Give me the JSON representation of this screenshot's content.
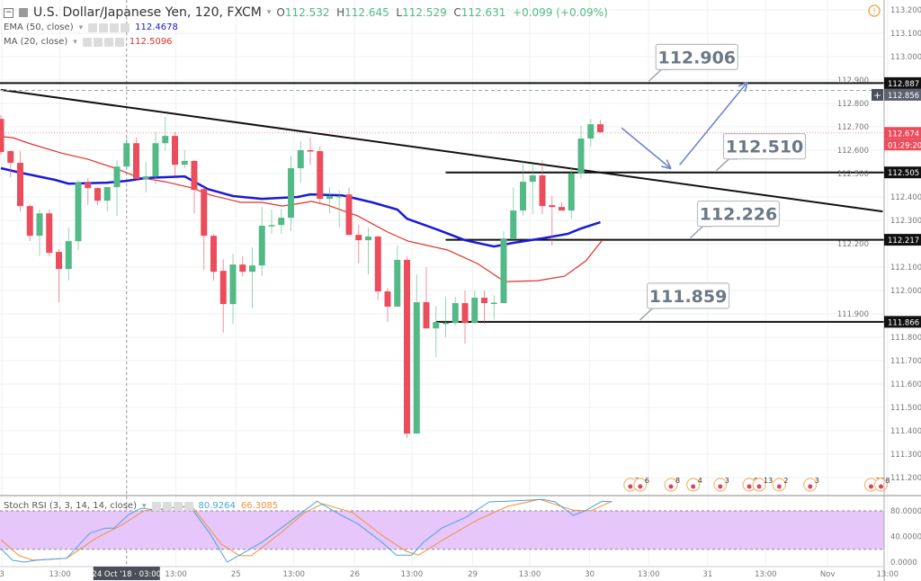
{
  "header": {
    "symbol": "U.S. Dollar/Japanese Yen, 120, FXCM",
    "open_label": "O",
    "open": "112.532",
    "high_label": "H",
    "high": "112.645",
    "low_label": "L",
    "low": "112.529",
    "close_label": "C",
    "close": "112.631",
    "change": "+0.099 (+0.09%)"
  },
  "indicators": {
    "ema": {
      "label": "EMA (50, close)",
      "value": "112.4678",
      "color": "#1a1ad6"
    },
    "ma": {
      "label": "MA (20, close)",
      "value": "112.5096",
      "color": "#e0302a"
    },
    "stoch": {
      "label": "Stoch RSI (3, 3, 14, 14, close)",
      "k_value": "80.9264",
      "d_value": "66.3085",
      "k_color": "#4aa3df",
      "d_color": "#f0923a"
    }
  },
  "colors": {
    "up": "#53b987",
    "down": "#eb4d5c",
    "band": "#e6c6fb",
    "grid": "#eef0f2"
  },
  "chart_data": {
    "type": "candlestick",
    "title": "U.S. Dollar/Japanese Yen, 120, FXCM",
    "ylim": [
      111.15,
      113.25
    ],
    "y_ticks": [
      "113.200",
      "113.100",
      "113.000",
      "112.900",
      "112.800",
      "112.700",
      "112.600",
      "112.500",
      "112.400",
      "112.300",
      "112.200",
      "112.100",
      "112.000",
      "111.900",
      "111.800",
      "111.700",
      "111.600",
      "111.500",
      "111.400",
      "111.300",
      "111.200"
    ],
    "candles": [
      [
        112.734,
        112.75,
        112.58,
        112.592
      ],
      [
        112.596,
        112.6,
        112.484,
        112.546
      ],
      [
        112.546,
        112.596,
        112.338,
        112.361
      ],
      [
        112.361,
        112.369,
        112.211,
        112.234
      ],
      [
        112.234,
        112.346,
        112.146,
        112.33
      ],
      [
        112.33,
        112.346,
        112.146,
        112.161
      ],
      [
        112.165,
        112.177,
        111.95,
        112.092
      ],
      [
        112.092,
        112.269,
        112.042,
        112.211
      ],
      [
        112.211,
        112.473,
        112.173,
        112.461
      ],
      [
        112.461,
        112.48,
        112.365,
        112.438
      ],
      [
        112.438,
        112.442,
        112.365,
        112.384
      ],
      [
        112.384,
        112.442,
        112.338,
        112.442
      ],
      [
        112.442,
        112.557,
        112.319,
        112.53
      ],
      [
        112.53,
        112.654,
        112.523,
        112.63
      ],
      [
        112.63,
        112.654,
        112.477,
        112.477
      ],
      [
        112.477,
        112.55,
        112.419,
        112.488
      ],
      [
        112.488,
        112.677,
        112.454,
        112.63
      ],
      [
        112.63,
        112.742,
        112.6,
        112.661
      ],
      [
        112.661,
        112.677,
        112.492,
        112.538
      ],
      [
        112.538,
        112.6,
        112.523,
        112.554
      ],
      [
        112.554,
        112.557,
        112.33,
        112.43
      ],
      [
        112.434,
        112.442,
        112.088,
        112.234
      ],
      [
        112.234,
        112.242,
        112.042,
        112.08
      ],
      [
        112.084,
        112.134,
        111.819,
        111.942
      ],
      [
        111.942,
        112.157,
        111.857,
        112.111
      ],
      [
        112.111,
        112.146,
        112.061,
        112.08
      ],
      [
        112.08,
        112.184,
        111.923,
        112.107
      ],
      [
        112.107,
        112.357,
        112.061,
        112.277
      ],
      [
        112.277,
        112.346,
        112.242,
        112.28
      ],
      [
        112.28,
        112.35,
        112.242,
        112.311
      ],
      [
        112.311,
        112.577,
        112.254,
        112.523
      ],
      [
        112.523,
        112.638,
        112.461,
        112.6
      ],
      [
        112.6,
        112.654,
        112.538,
        112.596
      ],
      [
        112.596,
        112.615,
        112.369,
        112.392
      ],
      [
        112.392,
        112.442,
        112.33,
        112.404
      ],
      [
        112.402,
        112.427,
        112.269,
        112.404
      ],
      [
        112.411,
        112.442,
        112.234,
        112.238
      ],
      [
        112.238,
        112.28,
        112.115,
        112.215
      ],
      [
        112.215,
        112.269,
        112.069,
        112.231
      ],
      [
        112.231,
        112.234,
        111.961,
        111.996
      ],
      [
        111.996,
        112.011,
        111.865,
        111.931
      ],
      [
        111.931,
        112.192,
        111.931,
        112.131
      ],
      [
        112.131,
        112.146,
        111.369,
        111.388
      ],
      [
        111.388,
        112.069,
        111.388,
        111.95
      ],
      [
        111.95,
        112.1,
        111.838,
        111.838
      ],
      [
        111.838,
        111.934,
        111.715,
        111.865
      ],
      [
        111.861,
        111.973,
        111.8,
        111.862
      ],
      [
        111.861,
        111.973,
        111.85,
        111.946
      ],
      [
        111.946,
        112.0,
        111.773,
        111.861
      ],
      [
        111.861,
        112.0,
        111.857,
        111.969
      ],
      [
        111.969,
        112.0,
        111.857,
        111.946
      ],
      [
        111.946,
        111.98,
        111.877,
        111.948
      ],
      [
        111.946,
        112.254,
        111.946,
        112.219
      ],
      [
        112.219,
        112.442,
        112.219,
        112.342
      ],
      [
        112.342,
        112.557,
        112.319,
        112.465
      ],
      [
        112.465,
        112.542,
        112.327,
        112.492
      ],
      [
        112.492,
        112.557,
        112.327,
        112.361
      ],
      [
        112.365,
        112.404,
        112.192,
        112.357
      ],
      [
        112.357,
        112.377,
        112.342,
        112.342
      ],
      [
        112.342,
        112.523,
        112.307,
        112.5
      ],
      [
        112.5,
        112.704,
        112.48,
        112.65
      ],
      [
        112.65,
        112.734,
        112.615,
        112.711
      ],
      [
        112.711,
        112.73,
        112.673,
        112.677
      ]
    ],
    "ema50": [
      [
        0,
        112.523
      ],
      [
        2,
        112.504
      ],
      [
        5.6,
        112.473
      ],
      [
        7,
        112.457
      ],
      [
        11,
        112.461
      ],
      [
        13,
        112.469
      ],
      [
        15,
        112.481
      ],
      [
        19,
        112.488
      ],
      [
        21.4,
        112.434
      ],
      [
        24,
        112.404
      ],
      [
        27,
        112.392
      ],
      [
        30.7,
        112.4
      ],
      [
        32,
        112.411
      ],
      [
        35.3,
        112.407
      ],
      [
        38.4,
        112.377
      ],
      [
        41,
        112.346
      ],
      [
        42,
        112.307
      ],
      [
        45.3,
        112.258
      ],
      [
        48,
        112.215
      ],
      [
        51,
        112.188
      ],
      [
        53,
        112.204
      ],
      [
        56,
        112.223
      ],
      [
        58.6,
        112.242
      ],
      [
        60,
        112.265
      ],
      [
        62,
        112.292
      ]
    ],
    "ma20": [
      [
        0,
        112.658
      ],
      [
        1.2,
        112.654
      ],
      [
        3.1,
        112.627
      ],
      [
        6.2,
        112.588
      ],
      [
        9,
        112.561
      ],
      [
        11.8,
        112.523
      ],
      [
        14.2,
        112.484
      ],
      [
        17,
        112.465
      ],
      [
        19.8,
        112.438
      ],
      [
        21.7,
        112.408
      ],
      [
        24.8,
        112.377
      ],
      [
        27,
        112.377
      ],
      [
        29.1,
        112.361
      ],
      [
        31,
        112.373
      ],
      [
        32.1,
        112.381
      ],
      [
        33.8,
        112.365
      ],
      [
        36.9,
        112.319
      ],
      [
        40,
        112.25
      ],
      [
        42.1,
        112.211
      ],
      [
        46.2,
        112.173
      ],
      [
        49.3,
        112.115
      ],
      [
        52.1,
        112.038
      ],
      [
        55.5,
        112.042
      ],
      [
        58.3,
        112.061
      ],
      [
        60.5,
        112.127
      ],
      [
        62.2,
        112.215
      ]
    ],
    "trendline": [
      [
        0,
        112.858
      ],
      [
        91.2,
        112.338
      ]
    ],
    "levels": [
      {
        "price": 112.887,
        "tag": "112.887",
        "from_index": -1,
        "callout": "112.906",
        "callout_index": 67
      },
      {
        "price": 112.505,
        "tag": "112.505",
        "from_index": 46,
        "callout": "112.510",
        "callout_index": 74
      },
      {
        "price": 112.217,
        "tag": "112.217",
        "from_index": 46,
        "callout": "112.226",
        "callout_index": 71.3
      },
      {
        "price": 111.866,
        "tag": "111.866",
        "from_index": 45,
        "callout": "111.859",
        "callout_index": 66.1
      }
    ],
    "crosshair": {
      "price": 112.856,
      "tag": "112.856",
      "index": 13
    },
    "last_price": {
      "price": 112.674,
      "tag": "112.674",
      "countdown": "01:29:20"
    },
    "forecast_arrows": [
      [
        [
          64.2,
          112.695
        ],
        [
          69.3,
          112.521
        ]
      ],
      [
        [
          70.2,
          112.537
        ],
        [
          77.2,
          112.891
        ]
      ]
    ],
    "x_ticks": [
      {
        "label": "3",
        "index": 0.1
      },
      {
        "label": "13:00",
        "index": 6.1
      },
      {
        "label": "24 Oct '18 · 03:00",
        "index": 13,
        "highlight": true
      },
      {
        "label": "13:00",
        "index": 18.1
      },
      {
        "label": "25",
        "index": 24.3
      },
      {
        "label": "13:00",
        "index": 30.3
      },
      {
        "label": "26",
        "index": 36.6
      },
      {
        "label": "13:00",
        "index": 42.5
      },
      {
        "label": "29",
        "index": 48.8
      },
      {
        "label": "13:00",
        "index": 54.7
      },
      {
        "label": "30",
        "index": 60.9
      },
      {
        "label": "13:00",
        "index": 67
      },
      {
        "label": "31",
        "index": 73.1
      },
      {
        "label": "13:00",
        "index": 79.1
      },
      {
        "label": "Nov",
        "index": 85.5
      },
      {
        "label": "13:00",
        "index": 91.7
      }
    ],
    "events": [
      {
        "index": 65.1,
        "labels": [
          "2",
          "6"
        ]
      },
      {
        "index": 69.3,
        "labels": [
          "8"
        ]
      },
      {
        "index": 71.6,
        "labels": [
          "4"
        ]
      },
      {
        "index": 74.4,
        "labels": [
          "3"
        ]
      },
      {
        "index": 77.4,
        "labels": [
          "9",
          "13"
        ]
      },
      {
        "index": 80.5,
        "labels": [
          "2"
        ]
      },
      {
        "index": 83.7,
        "labels": [
          "3"
        ]
      },
      {
        "index": 90,
        "labels": [
          "30",
          "8"
        ]
      }
    ],
    "stoch_rsi": {
      "ylim": [
        0,
        100
      ],
      "y_ticks": [
        "80.0000",
        "40.0000",
        "0.0000"
      ],
      "band": [
        20,
        80
      ],
      "k": [
        [
          0,
          21
        ],
        [
          1.2,
          3
        ],
        [
          2.4,
          0
        ],
        [
          3.7,
          3
        ],
        [
          6.8,
          6
        ],
        [
          9.2,
          45
        ],
        [
          10.8,
          53
        ],
        [
          11.7,
          53
        ],
        [
          13.2,
          74
        ],
        [
          14.5,
          84
        ],
        [
          16.3,
          81
        ],
        [
          18.5,
          87
        ],
        [
          19.7,
          84
        ],
        [
          21.6,
          45
        ],
        [
          23.4,
          0
        ],
        [
          24.7,
          11
        ],
        [
          27.1,
          32
        ],
        [
          29.6,
          60
        ],
        [
          32.7,
          95
        ],
        [
          35.1,
          74
        ],
        [
          36.9,
          60
        ],
        [
          39.4,
          31
        ],
        [
          40.9,
          11
        ],
        [
          42.5,
          11
        ],
        [
          43.7,
          31
        ],
        [
          45.6,
          53
        ],
        [
          48.1,
          70
        ],
        [
          50.5,
          94
        ],
        [
          52.4,
          95
        ],
        [
          56.1,
          98
        ],
        [
          57.3,
          94
        ],
        [
          59.2,
          73
        ],
        [
          60.4,
          80
        ],
        [
          62.2,
          95
        ],
        [
          63.2,
          94
        ]
      ],
      "d": [
        [
          0,
          35
        ],
        [
          1.9,
          10
        ],
        [
          3.3,
          3
        ],
        [
          6.8,
          6
        ],
        [
          9.9,
          38
        ],
        [
          12.3,
          56
        ],
        [
          14.8,
          80
        ],
        [
          17.2,
          84
        ],
        [
          19.7,
          88
        ],
        [
          22.8,
          28
        ],
        [
          24.7,
          10
        ],
        [
          25.9,
          10
        ],
        [
          28.9,
          45
        ],
        [
          31.4,
          77
        ],
        [
          33.3,
          91
        ],
        [
          36.4,
          77
        ],
        [
          39.4,
          42
        ],
        [
          41.9,
          17
        ],
        [
          43.2,
          11
        ],
        [
          46.2,
          39
        ],
        [
          49.3,
          66
        ],
        [
          52.4,
          87
        ],
        [
          55.7,
          98
        ],
        [
          59.2,
          81
        ],
        [
          61,
          80
        ],
        [
          63.2,
          95
        ]
      ]
    }
  }
}
